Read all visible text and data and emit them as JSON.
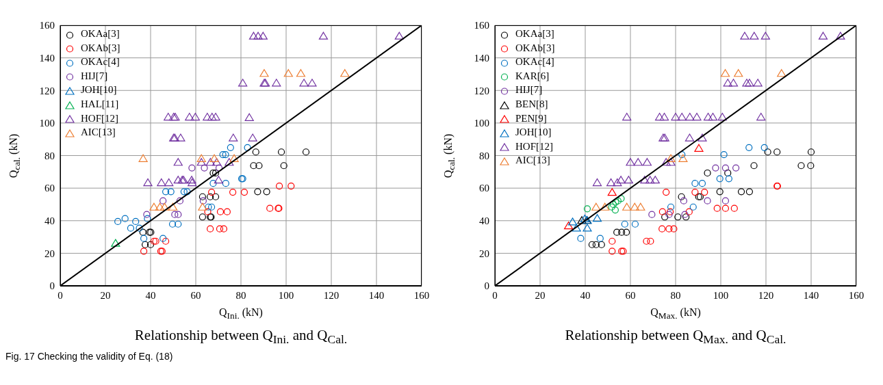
{
  "chart_data": [
    {
      "type": "scatter",
      "title": "Relationship between Q$_{Ini.}$ and Q$_{Cal.}$",
      "xlabel": "Q$_{Ini.}$ (kN)",
      "ylabel": "Q$_{cal.}$ (kN)",
      "xlim": [
        0,
        160
      ],
      "ylim": [
        0,
        160
      ],
      "xticks": [
        0,
        20,
        40,
        60,
        80,
        100,
        120,
        140,
        160
      ],
      "yticks": [
        0,
        20,
        40,
        60,
        80,
        100,
        120,
        140,
        160
      ],
      "grid": true,
      "legend": "top left",
      "annotations": [
        "Fig. 17 Checking the validity of Eq. (18)"
      ],
      "series": [
        {
          "name": "OKAa[3]",
          "color": "#000000",
          "marker": "circle",
          "x": [
            36.6,
            39.5,
            40.1,
            37.6,
            40.0,
            63,
            66.4,
            68.8,
            63,
            66.4,
            66.8,
            67.7,
            68.8,
            86.6,
            97.9,
            108.8,
            85.6,
            88,
            99,
            87.4,
            91.4
          ],
          "values": [
            32.9,
            32.9,
            32.9,
            25.3,
            25.3,
            54.7,
            54.7,
            54.7,
            42.3,
            42.3,
            42.3,
            69.3,
            69.3,
            82.2,
            82.2,
            82.2,
            73.8,
            73.8,
            73.8,
            57.8,
            57.8
          ]
        },
        {
          "name": "OKAb[3]",
          "color": "#ff0000",
          "marker": "circle",
          "x": [
            37,
            44.5,
            45.1,
            41.5,
            42.3,
            46.7,
            66.4,
            70.6,
            72.4,
            65.3,
            70.9,
            73.9,
            67,
            76.4,
            81.5,
            92.8,
            96.5,
            96.8,
            97,
            102.2
          ],
          "values": [
            21.3,
            21.3,
            21.3,
            27.4,
            27.4,
            27.4,
            35,
            35,
            35,
            45.5,
            45.5,
            45.5,
            57.5,
            57.5,
            57.5,
            47.6,
            47.6,
            47.6,
            61.3,
            61.3
          ]
        },
        {
          "name": "OKAc[4]",
          "color": "#0070c0",
          "marker": "circle",
          "x": [
            25.5,
            28.7,
            33.4,
            31.2,
            35,
            37,
            38.6,
            45.5,
            46.7,
            49,
            54.8,
            56.2,
            49.7,
            52.2,
            65.6,
            67,
            67.7,
            73.3,
            72,
            73.2,
            75.4,
            80.3,
            80.8,
            82.9
          ],
          "values": [
            39.5,
            41.3,
            39.5,
            35.4,
            35.4,
            29.1,
            41.3,
            29.1,
            57.8,
            57.8,
            57.8,
            57.8,
            37.9,
            37.9,
            48.4,
            48.4,
            62.9,
            62.9,
            80.6,
            80.6,
            84.9,
            65.8,
            65.8,
            84.9
          ]
        },
        {
          "name": "HIJ[7]",
          "color": "#7030a0",
          "marker": "circle",
          "x": [
            58.3,
            63.8,
            70.3,
            45.5,
            53,
            63.3,
            38.3,
            50.7,
            52.2
          ],
          "values": [
            72.4,
            72.4,
            72.4,
            52.2,
            52.2,
            52.2,
            43.8,
            43.8,
            43.8
          ]
        },
        {
          "name": "JOH[10]",
          "color": "#0070c0",
          "marker": "triangle"
        },
        {
          "name": "HAL[11]",
          "color": "#00b050",
          "marker": "triangle",
          "x": [
            24.5
          ],
          "values": [
            26.2
          ]
        },
        {
          "name": "HOF[12]",
          "color": "#7030a0",
          "marker": "triangle",
          "x": [
            47.8,
            50.2,
            50.9,
            57.2,
            59.8,
            65.1,
            67.2,
            68.8,
            83.7,
            50.2,
            50.7,
            53.3,
            76.6,
            85.2,
            52.2,
            62.5,
            66.5,
            69.3,
            74.8,
            38.8,
            44.8,
            48.1,
            52.2,
            54,
            54.6,
            58.2,
            58.4,
            70.1,
            85.6,
            87.6,
            89.8,
            116.5,
            150.1,
            80.8,
            90.3,
            90.8,
            95.7,
            107.9,
            111.5
          ],
          "values": [
            103.7,
            103.7,
            103.7,
            103.7,
            103.7,
            103.7,
            103.7,
            103.7,
            103.4,
            90.9,
            90.9,
            90.9,
            90.9,
            90.9,
            75.9,
            75.9,
            75.9,
            75.9,
            75.9,
            63.4,
            63.4,
            63.4,
            65,
            65,
            65,
            65,
            63.4,
            65,
            153.4,
            153.4,
            153.4,
            153.4,
            153.4,
            124.6,
            124.6,
            124.6,
            124.6,
            124.6,
            124.6
          ]
        },
        {
          "name": "AIC[13]",
          "color": "#ed7d31",
          "marker": "triangle",
          "x": [
            36.7,
            62.5,
            68.2,
            77,
            41.5,
            44.1,
            46.2,
            49.9,
            63,
            90.3,
            101,
            106.5,
            126
          ],
          "values": [
            78.2,
            78.2,
            78.2,
            78.2,
            48.4,
            48.4,
            48.4,
            48.4,
            48.4,
            130.5,
            130.5,
            130.5,
            130.5
          ]
        },
        {
          "type": "line",
          "color": "#000000",
          "line_style": "solid",
          "x": [
            0,
            160
          ],
          "values": [
            0,
            160
          ]
        }
      ]
    },
    {
      "type": "scatter",
      "title": "Relationship between Q$_{Max.}$ and Q$_{Cal.}$",
      "xlabel": "Q$_{Max.}$ (kN)",
      "ylabel": "Q$_{cal.}$ (kN)",
      "xlim": [
        0,
        160
      ],
      "ylim": [
        0,
        160
      ],
      "xticks": [
        0,
        20,
        40,
        60,
        80,
        100,
        120,
        140,
        160
      ],
      "yticks": [
        0,
        20,
        40,
        60,
        80,
        100,
        120,
        140,
        160
      ],
      "grid": true,
      "legend": "top left",
      "series": [
        {
          "name": "OKAa[3]",
          "color": "#000000",
          "marker": "circle",
          "x": [
            43,
            44.8,
            47.2,
            54,
            56.1,
            58.2,
            75.2,
            81,
            84.6,
            82.6,
            90.2,
            90.9,
            94.1,
            103.1,
            99.6,
            109.1,
            112.7,
            114.7,
            135.6,
            139.8,
            120.8,
            124.9,
            140
          ],
          "values": [
            25.3,
            25.3,
            25.3,
            32.9,
            32.9,
            32.9,
            42.3,
            42.3,
            42.3,
            54.7,
            54.7,
            54.7,
            69.3,
            69.3,
            57.8,
            57.8,
            57.8,
            73.8,
            73.8,
            73.8,
            82.2,
            82.2,
            82.2
          ]
        },
        {
          "name": "OKAb[3]",
          "color": "#ff0000",
          "marker": "circle",
          "x": [
            51.9,
            51.9,
            56.1,
            56.8,
            67.1,
            68.9,
            75.8,
            74.2,
            77.6,
            86,
            74,
            77.1,
            79.2,
            88.6,
            92.8,
            98.4,
            102.1,
            106,
            124.9,
            125.1
          ],
          "values": [
            27.4,
            21.3,
            21.3,
            21.3,
            27.4,
            27.4,
            57.5,
            45.5,
            45.5,
            45.5,
            35,
            35,
            35,
            57.5,
            57.5,
            47.6,
            47.6,
            47.6,
            61.3,
            61.3
          ]
        },
        {
          "name": "OKAc[4]",
          "color": "#0070c0",
          "marker": "circle",
          "x": [
            38,
            46.6,
            57.5,
            62.1,
            77.9,
            87.8,
            88.6,
            91.8,
            99.6,
            103.6,
            101.4,
            82.8,
            112.5,
            119.3
          ],
          "values": [
            29.1,
            29.1,
            37.9,
            37.9,
            48.4,
            48.4,
            62.9,
            62.9,
            65.8,
            65.8,
            80.6,
            80.6,
            84.9,
            84.9
          ]
        },
        {
          "name": "KAR[6]",
          "color": "#00b050",
          "marker": "circle",
          "x": [
            40.9,
            51.7,
            52.4,
            53.5,
            54.5,
            55.9,
            53.3
          ],
          "values": [
            47.3,
            48.4,
            50,
            51.4,
            52.2,
            53.6,
            46.6
          ]
        },
        {
          "name": "HIJ[7]",
          "color": "#7030a0",
          "marker": "circle",
          "x": [
            69.5,
            77.1,
            84.1,
            83.6,
            94.1,
            102.1,
            97.7,
            102.1,
            106.7
          ],
          "values": [
            43.8,
            43.8,
            43.8,
            52.2,
            52.2,
            52.2,
            72.4,
            72.4,
            72.4
          ]
        },
        {
          "name": "BEN[8]",
          "color": "#000000",
          "marker": "triangle",
          "x": [
            38.5,
            40.7
          ],
          "values": [
            40.2,
            40.2
          ]
        },
        {
          "name": "PEN[9]",
          "color": "#ff0000",
          "marker": "triangle",
          "x": [
            32.6,
            51.9,
            90.3
          ],
          "values": [
            36.9,
            57.5,
            84.5
          ]
        },
        {
          "name": "JOH[10]",
          "color": "#0070c0",
          "marker": "triangle",
          "x": [
            34.4,
            36.1,
            39.8,
            40.9,
            40.9,
            45.3
          ],
          "values": [
            39.3,
            35.5,
            41.2,
            40.2,
            35.5,
            41.5
          ]
        },
        {
          "name": "HOF[12]",
          "color": "#7030a0",
          "marker": "triangle",
          "x": [
            58.4,
            72.9,
            75,
            80,
            82.8,
            86.3,
            89.4,
            94.4,
            96.5,
            100.7,
            117.8,
            74.5,
            75.2,
            86.2,
            91.8,
            60,
            63.4,
            67.4,
            75.8,
            77.9,
            45.3,
            51.4,
            54.2,
            55.8,
            59.2,
            66.3,
            68.7,
            71,
            110.6,
            114.8,
            119.8,
            145.3,
            153,
            103.1,
            105.6,
            111.5,
            112.7,
            116.4
          ],
          "values": [
            103.7,
            103.7,
            103.7,
            103.7,
            103.7,
            103.7,
            103.7,
            103.7,
            103.7,
            103.7,
            103.7,
            90.9,
            90.9,
            90.9,
            90.9,
            75.9,
            75.9,
            75.9,
            75.9,
            75.9,
            63.4,
            63.4,
            63.4,
            65,
            65,
            65,
            65,
            65,
            153.4,
            153.4,
            153.4,
            153.4,
            153.4,
            124.6,
            124.6,
            124.6,
            124.6,
            124.6
          ]
        },
        {
          "name": "AIC[13]",
          "color": "#ed7d31",
          "marker": "triangle",
          "x": [
            44.8,
            48.7,
            58.4,
            61.9,
            64.5,
            77.9,
            83.3,
            102,
            107.8,
            126.9
          ],
          "values": [
            48.4,
            48.4,
            48.4,
            48.4,
            48.4,
            78.2,
            78.2,
            130.5,
            130.5,
            130.5
          ]
        },
        {
          "type": "line",
          "color": "#000000",
          "line_style": "solid",
          "x": [
            0,
            160
          ],
          "values": [
            0,
            160
          ]
        }
      ]
    }
  ]
}
